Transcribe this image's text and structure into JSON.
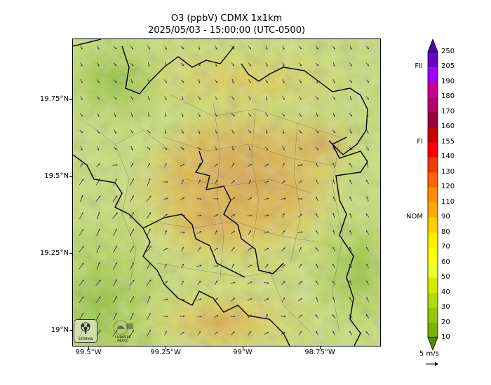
{
  "title": {
    "line1": "O3 (ppbV) CDMX 1x1km",
    "line2": "2025/05/03 - 15:00:00 (UTC-0500)"
  },
  "map": {
    "lat_ticks": [
      "19.75°N",
      "19.5°N",
      "19.25°N",
      "19°N"
    ],
    "lon_ticks": [
      "99.5°W",
      "99.25°W",
      "99°W",
      "98.75°W"
    ],
    "logos": [
      "SEDEMA",
      "CIUDAD DE MÉXICO"
    ]
  },
  "colorbar": {
    "levels": [
      10,
      20,
      30,
      40,
      50,
      60,
      70,
      80,
      90,
      110,
      120,
      130,
      140,
      155,
      160,
      170,
      180,
      190,
      205,
      250
    ],
    "colors": [
      "#5aa000",
      "#78b400",
      "#96c800",
      "#b4dc00",
      "#d2ee00",
      "#f0ff33",
      "#ffff00",
      "#ffee00",
      "#ffd200",
      "#ffaa00",
      "#ff8c00",
      "#ff6400",
      "#ee3c00",
      "#ff0000",
      "#c80000",
      "#96003c",
      "#b4006e",
      "#c80096",
      "#a000ff",
      "#6a00c8"
    ],
    "extend_low": "#5a8a00",
    "extend_high": "#5000b4",
    "categories": [
      {
        "label": "FII",
        "value": 205
      },
      {
        "label": "FI",
        "value": 155
      },
      {
        "label": "NOM",
        "value": 90
      }
    ]
  },
  "wind": {
    "label": "5 m/s"
  }
}
